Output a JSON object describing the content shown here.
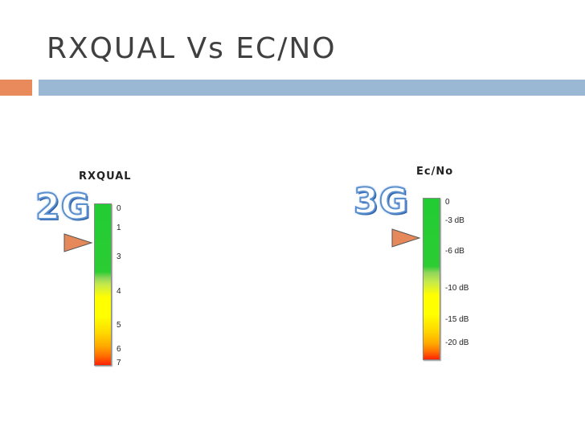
{
  "slide": {
    "title": "RXQUAL Vs EC/NO"
  },
  "left_meter": {
    "label": "RXQUAL",
    "badge": "2G",
    "ticks": [
      "0",
      "1",
      "3",
      "4",
      "5",
      "6",
      "7"
    ]
  },
  "right_meter": {
    "label": "Ec/No",
    "badge": "3G",
    "ticks": [
      "0",
      "-3 dB",
      "-6 dB",
      "-10 dB",
      "-15 dB",
      "-20 dB"
    ]
  },
  "colors": {
    "accent_orange": "#e98a5c",
    "accent_blue": "#9ab7d4",
    "pointer": "#e5895a",
    "meter_good": "#22cc33",
    "meter_mid": "#ffff00",
    "meter_bad": "#ff2200"
  },
  "icons": {
    "pointer": "triangle-pointer-icon"
  }
}
